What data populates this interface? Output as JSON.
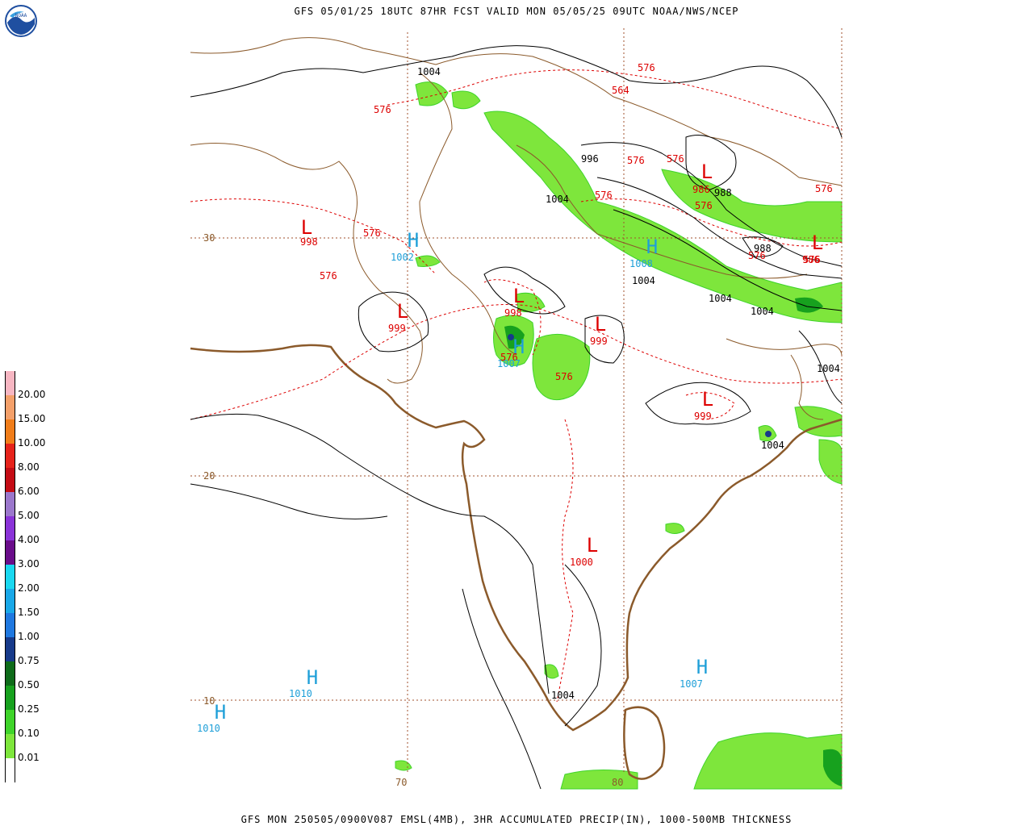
{
  "header": {
    "title": "GFS 05/01/25 18UTC 87HR FCST VALID MON 05/05/25 09UTC NOAA/NWS/NCEP",
    "footer": "GFS MON 250505/0900V087 EMSL(4MB), 3HR ACCUMULATED PRECIP(IN), 1000-500MB THICKNESS"
  },
  "logo": {
    "icon": "noaa-logo-icon",
    "text": "NOAA"
  },
  "colors": {
    "pressure_high": "#1e9fd8",
    "pressure_low": "#dd0000",
    "coastline": "#8b5a2b",
    "grid": "#a0522d",
    "thickness": "#dd0000",
    "isobar": "#000000"
  },
  "legend": {
    "items": [
      {
        "label": "20.00",
        "color": "#f7b6c2"
      },
      {
        "label": "15.00",
        "color": "#f4a06a"
      },
      {
        "label": "10.00",
        "color": "#f07d1a"
      },
      {
        "label": "8.00",
        "color": "#e6231b"
      },
      {
        "label": "6.00",
        "color": "#c40c15"
      },
      {
        "label": "5.00",
        "color": "#9b77cc"
      },
      {
        "label": "4.00",
        "color": "#8a33d8"
      },
      {
        "label": "3.00",
        "color": "#6a0d8a"
      },
      {
        "label": "2.00",
        "color": "#1ad8f0"
      },
      {
        "label": "1.50",
        "color": "#19a8e8"
      },
      {
        "label": "1.00",
        "color": "#1f78e0"
      },
      {
        "label": "0.75",
        "color": "#173a8a"
      },
      {
        "label": "0.50",
        "color": "#0e6b1a"
      },
      {
        "label": "0.25",
        "color": "#17a11e"
      },
      {
        "label": "0.10",
        "color": "#3fd42a"
      },
      {
        "label": "0.01",
        "color": "#7ee63c"
      },
      {
        "label": "",
        "color": "#ffffff"
      }
    ]
  },
  "grid": {
    "lat_labels": [
      "30",
      "20",
      "10"
    ],
    "lon_labels": [
      "70",
      "80"
    ]
  },
  "pressure_centers": [
    {
      "type": "L",
      "value": "998"
    },
    {
      "type": "H",
      "value": "1002"
    },
    {
      "type": "L",
      "value": "999"
    },
    {
      "type": "L",
      "value": "998"
    },
    {
      "type": "H",
      "value": "1007"
    },
    {
      "type": "L",
      "value": "999"
    },
    {
      "type": "H",
      "value": "1008"
    },
    {
      "type": "L",
      "value": "986"
    },
    {
      "type": "L",
      "value": "986"
    },
    {
      "type": "L",
      "value": "999"
    },
    {
      "type": "L",
      "value": "1000"
    },
    {
      "type": "H",
      "value": "1010"
    },
    {
      "type": "H",
      "value": "1010"
    },
    {
      "type": "H",
      "value": "1007"
    }
  ],
  "isobar_labels": [
    "1004",
    "996",
    "1004",
    "988",
    "988",
    "1004",
    "1004",
    "1004",
    "1004",
    "1004",
    "1004"
  ],
  "thickness_labels": [
    "576",
    "564",
    "576",
    "576",
    "576",
    "576",
    "576",
    "576",
    "576",
    "576",
    "576",
    "576",
    "576",
    "576"
  ]
}
